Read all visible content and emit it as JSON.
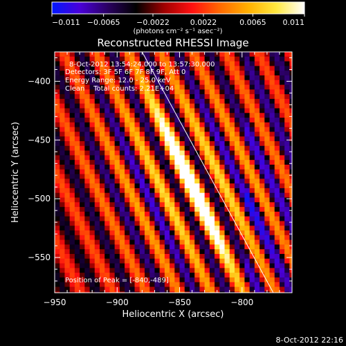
{
  "chart_data": {
    "type": "heatmap",
    "title": "Reconstructed RHESSI Image",
    "xlabel": "Heliocentric X (arcsec)",
    "ylabel": "Heliocentric Y (arcsec)",
    "xlim": [
      -950,
      -760
    ],
    "ylim": [
      -580,
      -375
    ],
    "x_ticks": [
      -950,
      -900,
      -850,
      -800
    ],
    "x_tick_labels": [
      "−950",
      "−900",
      "−850",
      "−800"
    ],
    "y_ticks": [
      -400,
      -450,
      -500,
      -550
    ],
    "y_tick_labels": [
      "−400",
      "−450",
      "−500",
      "−550"
    ],
    "colorbar": {
      "min": -0.011,
      "max": 0.011,
      "ticks": [
        -0.011,
        -0.0065,
        -0.0022,
        0.0022,
        0.0065,
        0.011
      ],
      "tick_labels": [
        "−0.011",
        "−0.0065",
        "−0.0022",
        "0.0022",
        "0.0065",
        "0.011"
      ],
      "units_label": "(photons cm⁻² s⁻¹ asec⁻²)",
      "colormap": [
        "#0018ff",
        "#4a00d8",
        "#2a0060",
        "#000000",
        "#a00000",
        "#ff1010",
        "#ff6a00",
        "#ffb000",
        "#ffe840",
        "#ffffff"
      ]
    },
    "peak": {
      "x": -840,
      "y": -489
    },
    "limb_line": {
      "x1": -880,
      "y1": -375,
      "x2": -775,
      "y2": -580
    },
    "annotations": {
      "time_range": "8-Oct-2012 13:54:24.000 to 13:57:30.000",
      "detectors": "Detectors: 3F 5F 6F 7F 8F 9F, Att 0",
      "energy": "Energy Range: 12.0 - 25.0 keV",
      "method": "Clean    Total counts: 2.21E+04",
      "peak_label": "Position of Peak = [-840,-489]"
    },
    "timestamp": "8-Oct-2012 22:16"
  }
}
